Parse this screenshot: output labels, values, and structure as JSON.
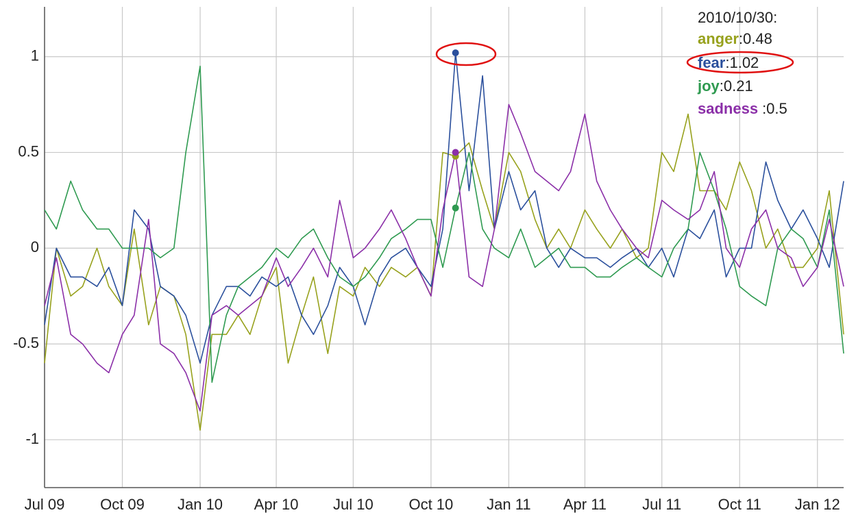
{
  "chart_data": {
    "type": "line",
    "x": [
      "2009/07/01",
      "2009/07/15",
      "2009/08/01",
      "2009/08/15",
      "2009/09/01",
      "2009/09/15",
      "2009/10/01",
      "2009/10/15",
      "2009/11/01",
      "2009/11/15",
      "2009/12/01",
      "2009/12/15",
      "2010/01/01",
      "2010/01/15",
      "2010/02/01",
      "2010/02/15",
      "2010/03/01",
      "2010/03/15",
      "2010/04/01",
      "2010/04/15",
      "2010/05/01",
      "2010/05/15",
      "2010/06/01",
      "2010/06/15",
      "2010/07/01",
      "2010/07/15",
      "2010/08/01",
      "2010/08/15",
      "2010/09/01",
      "2010/09/15",
      "2010/10/01",
      "2010/10/15",
      "2010/10/30",
      "2010/11/15",
      "2010/12/01",
      "2010/12/15",
      "2011/01/01",
      "2011/01/15",
      "2011/02/01",
      "2011/02/15",
      "2011/03/01",
      "2011/03/15",
      "2011/04/01",
      "2011/04/15",
      "2011/05/01",
      "2011/05/15",
      "2011/06/01",
      "2011/06/15",
      "2011/07/01",
      "2011/07/15",
      "2011/08/01",
      "2011/08/15",
      "2011/09/01",
      "2011/09/15",
      "2011/10/01",
      "2011/10/15",
      "2011/11/01",
      "2011/11/15",
      "2011/12/01",
      "2011/12/15",
      "2012/01/01",
      "2012/01/15",
      "2012/02/01"
    ],
    "series": [
      {
        "name": "anger",
        "color": "#97a11c",
        "values": [
          -0.6,
          0.0,
          -0.25,
          -0.2,
          0.0,
          -0.2,
          -0.3,
          0.1,
          -0.4,
          -0.2,
          -0.25,
          -0.45,
          -0.95,
          -0.45,
          -0.45,
          -0.35,
          -0.45,
          -0.25,
          -0.1,
          -0.6,
          -0.35,
          -0.15,
          -0.55,
          -0.2,
          -0.25,
          -0.1,
          -0.2,
          -0.1,
          -0.15,
          -0.1,
          -0.25,
          0.5,
          0.48,
          0.55,
          0.3,
          0.1,
          0.5,
          0.4,
          0.15,
          0.0,
          0.1,
          0.0,
          0.2,
          0.1,
          0.0,
          0.1,
          -0.05,
          0.0,
          0.5,
          0.4,
          0.7,
          0.3,
          0.3,
          0.2,
          0.45,
          0.3,
          0.0,
          0.1,
          -0.1,
          -0.1,
          0.0,
          0.3,
          -0.45
        ]
      },
      {
        "name": "fear",
        "color": "#2a4f9c",
        "values": [
          -0.4,
          0.0,
          -0.15,
          -0.15,
          -0.2,
          -0.1,
          -0.3,
          0.2,
          0.1,
          -0.2,
          -0.25,
          -0.35,
          -0.6,
          -0.35,
          -0.2,
          -0.2,
          -0.25,
          -0.15,
          -0.2,
          -0.15,
          -0.35,
          -0.45,
          -0.3,
          -0.1,
          -0.2,
          -0.4,
          -0.15,
          -0.05,
          0.0,
          -0.1,
          -0.2,
          0.1,
          1.02,
          0.3,
          0.9,
          0.1,
          0.4,
          0.2,
          0.3,
          0.0,
          -0.1,
          0.0,
          -0.05,
          -0.05,
          -0.1,
          -0.05,
          0.0,
          -0.1,
          0.0,
          -0.15,
          0.1,
          0.05,
          0.2,
          -0.15,
          0.0,
          0.0,
          0.45,
          0.25,
          0.1,
          0.2,
          0.05,
          -0.1,
          0.35
        ]
      },
      {
        "name": "joy",
        "color": "#2e9a50",
        "values": [
          0.2,
          0.1,
          0.35,
          0.2,
          0.1,
          0.1,
          0.0,
          0.0,
          0.0,
          -0.05,
          0.0,
          0.5,
          0.95,
          -0.7,
          -0.35,
          -0.2,
          -0.15,
          -0.1,
          0.0,
          -0.05,
          0.05,
          0.1,
          -0.05,
          -0.15,
          -0.2,
          -0.15,
          -0.05,
          0.05,
          0.1,
          0.15,
          0.15,
          -0.1,
          0.21,
          0.5,
          0.1,
          0.0,
          -0.05,
          0.1,
          -0.1,
          -0.05,
          0.0,
          -0.1,
          -0.1,
          -0.15,
          -0.15,
          -0.1,
          -0.05,
          -0.1,
          -0.15,
          0.0,
          0.1,
          0.5,
          0.3,
          0.1,
          -0.2,
          -0.25,
          -0.3,
          0.0,
          0.1,
          0.05,
          -0.1,
          0.2,
          -0.55
        ]
      },
      {
        "name": "sadness",
        "color": "#8b2fa8",
        "values": [
          -0.3,
          -0.05,
          -0.45,
          -0.5,
          -0.6,
          -0.65,
          -0.45,
          -0.35,
          0.15,
          -0.5,
          -0.55,
          -0.65,
          -0.85,
          -0.35,
          -0.3,
          -0.35,
          -0.3,
          -0.25,
          -0.05,
          -0.2,
          -0.1,
          0.0,
          -0.15,
          0.25,
          -0.05,
          0.0,
          0.1,
          0.2,
          0.05,
          -0.1,
          -0.25,
          0.2,
          0.5,
          -0.15,
          -0.2,
          0.1,
          0.75,
          0.6,
          0.4,
          0.35,
          0.3,
          0.4,
          0.7,
          0.35,
          0.2,
          0.1,
          0.0,
          -0.05,
          0.25,
          0.2,
          0.15,
          0.2,
          0.4,
          0.0,
          -0.1,
          0.1,
          0.2,
          0.0,
          -0.05,
          -0.2,
          -0.1,
          0.15,
          -0.2
        ]
      }
    ],
    "xlim": [
      "2009/07/01",
      "2012/02/01"
    ],
    "xticks": [
      {
        "value": "2009/07/01",
        "label": "Jul 09"
      },
      {
        "value": "2009/10/01",
        "label": "Oct 09"
      },
      {
        "value": "2010/01/01",
        "label": "Jan 10"
      },
      {
        "value": "2010/04/01",
        "label": "Apr 10"
      },
      {
        "value": "2010/07/01",
        "label": "Jul 10"
      },
      {
        "value": "2010/10/01",
        "label": "Oct 10"
      },
      {
        "value": "2011/01/01",
        "label": "Jan 11"
      },
      {
        "value": "2011/04/01",
        "label": "Apr 11"
      },
      {
        "value": "2011/07/01",
        "label": "Jul 11"
      },
      {
        "value": "2011/10/01",
        "label": "Oct 11"
      },
      {
        "value": "2012/01/01",
        "label": "Jan 12"
      }
    ],
    "ylim": [
      -1.25,
      1.26
    ],
    "yticks": [
      -1,
      -0.5,
      0,
      0.5,
      1
    ],
    "grid": true,
    "tooltip": {
      "title": "2010/10/30:",
      "labels": [
        ":0.48",
        ":1.02",
        ":0.21",
        ":0.5"
      ]
    }
  }
}
